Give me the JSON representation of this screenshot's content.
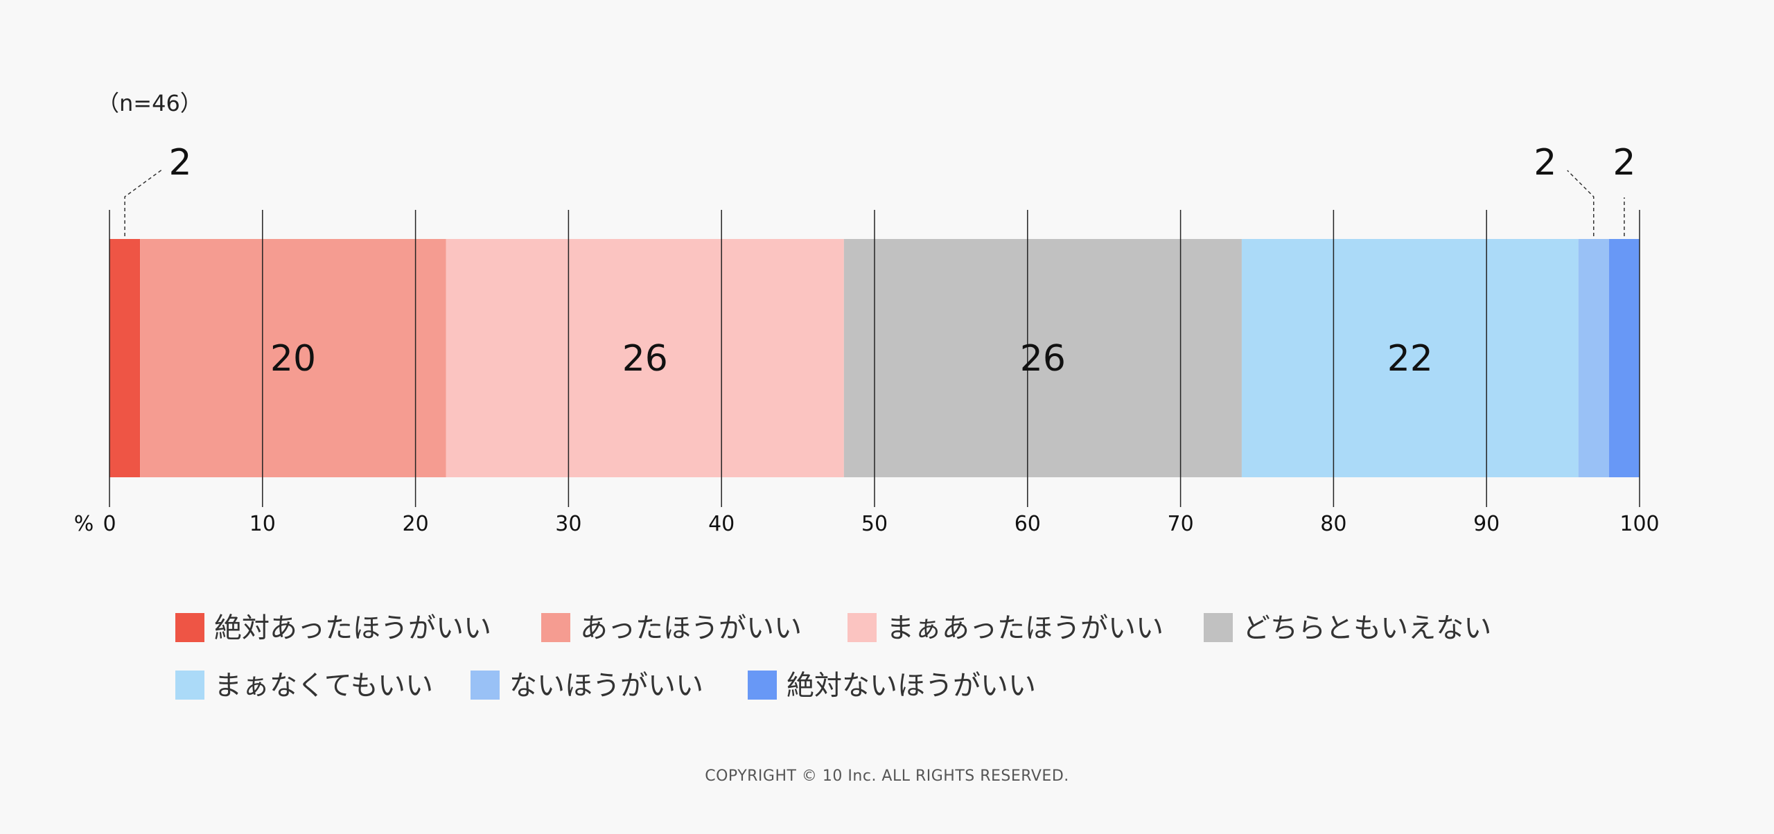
{
  "chart_data": {
    "type": "bar",
    "orientation": "horizontal-stacked",
    "sample_label": "（n=46）",
    "unit_label": "%",
    "xlim": [
      0,
      100
    ],
    "x_ticks": [
      0,
      10,
      20,
      30,
      40,
      50,
      60,
      70,
      80,
      90,
      100
    ],
    "categories": [
      ""
    ],
    "series": [
      {
        "name": "絶対あったほうがいい",
        "values": [
          2
        ],
        "color": "#ee5545",
        "label": "2"
      },
      {
        "name": "あったほうがいい",
        "values": [
          20
        ],
        "color": "#f59c91",
        "label": "20"
      },
      {
        "name": "まぁあったほうがいい",
        "values": [
          26
        ],
        "color": "#fbc4c1",
        "label": "26"
      },
      {
        "name": "どちらともいえない",
        "values": [
          26
        ],
        "color": "#c1c1c1",
        "label": "26"
      },
      {
        "name": "まぁなくてもいい",
        "values": [
          22
        ],
        "color": "#abdaf8",
        "label": "22"
      },
      {
        "name": "ないほうがいい",
        "values": [
          2
        ],
        "color": "#99c1f6",
        "label": "2"
      },
      {
        "name": "絶対ないほうがいい",
        "values": [
          2
        ],
        "color": "#6898f6",
        "label": "2"
      }
    ],
    "legend_position": "bottom",
    "grid": false
  },
  "footer": {
    "copyright": "COPYRIGHT © 10 Inc. ALL RIGHTS RESERVED."
  }
}
